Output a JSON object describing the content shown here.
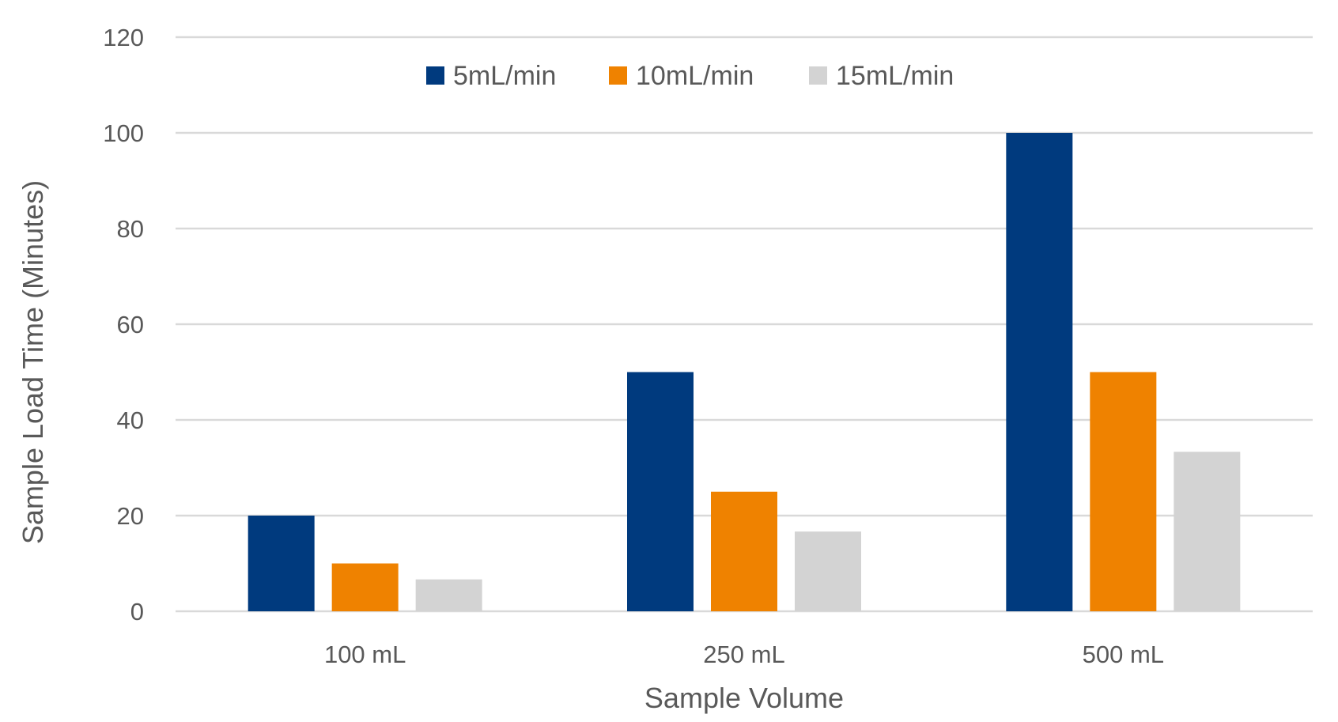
{
  "chart_data": {
    "type": "bar",
    "title": "",
    "xlabel": "Sample Volume",
    "ylabel": "Sample Load Time (Minutes)",
    "categories": [
      "100 mL",
      "250 mL",
      "500 mL"
    ],
    "series": [
      {
        "name": "5mL/min",
        "color": "#003A7E",
        "values": [
          20,
          50,
          100
        ]
      },
      {
        "name": "10mL/min",
        "color": "#EF8200",
        "values": [
          10,
          25,
          50
        ]
      },
      {
        "name": "15mL/min",
        "color": "#D3D3D3",
        "values": [
          6.67,
          16.67,
          33.33
        ]
      }
    ],
    "ylim": [
      0,
      120
    ],
    "yticks": [
      0,
      20,
      40,
      60,
      80,
      100,
      120
    ],
    "grid": true,
    "legend_position": "top-center"
  }
}
